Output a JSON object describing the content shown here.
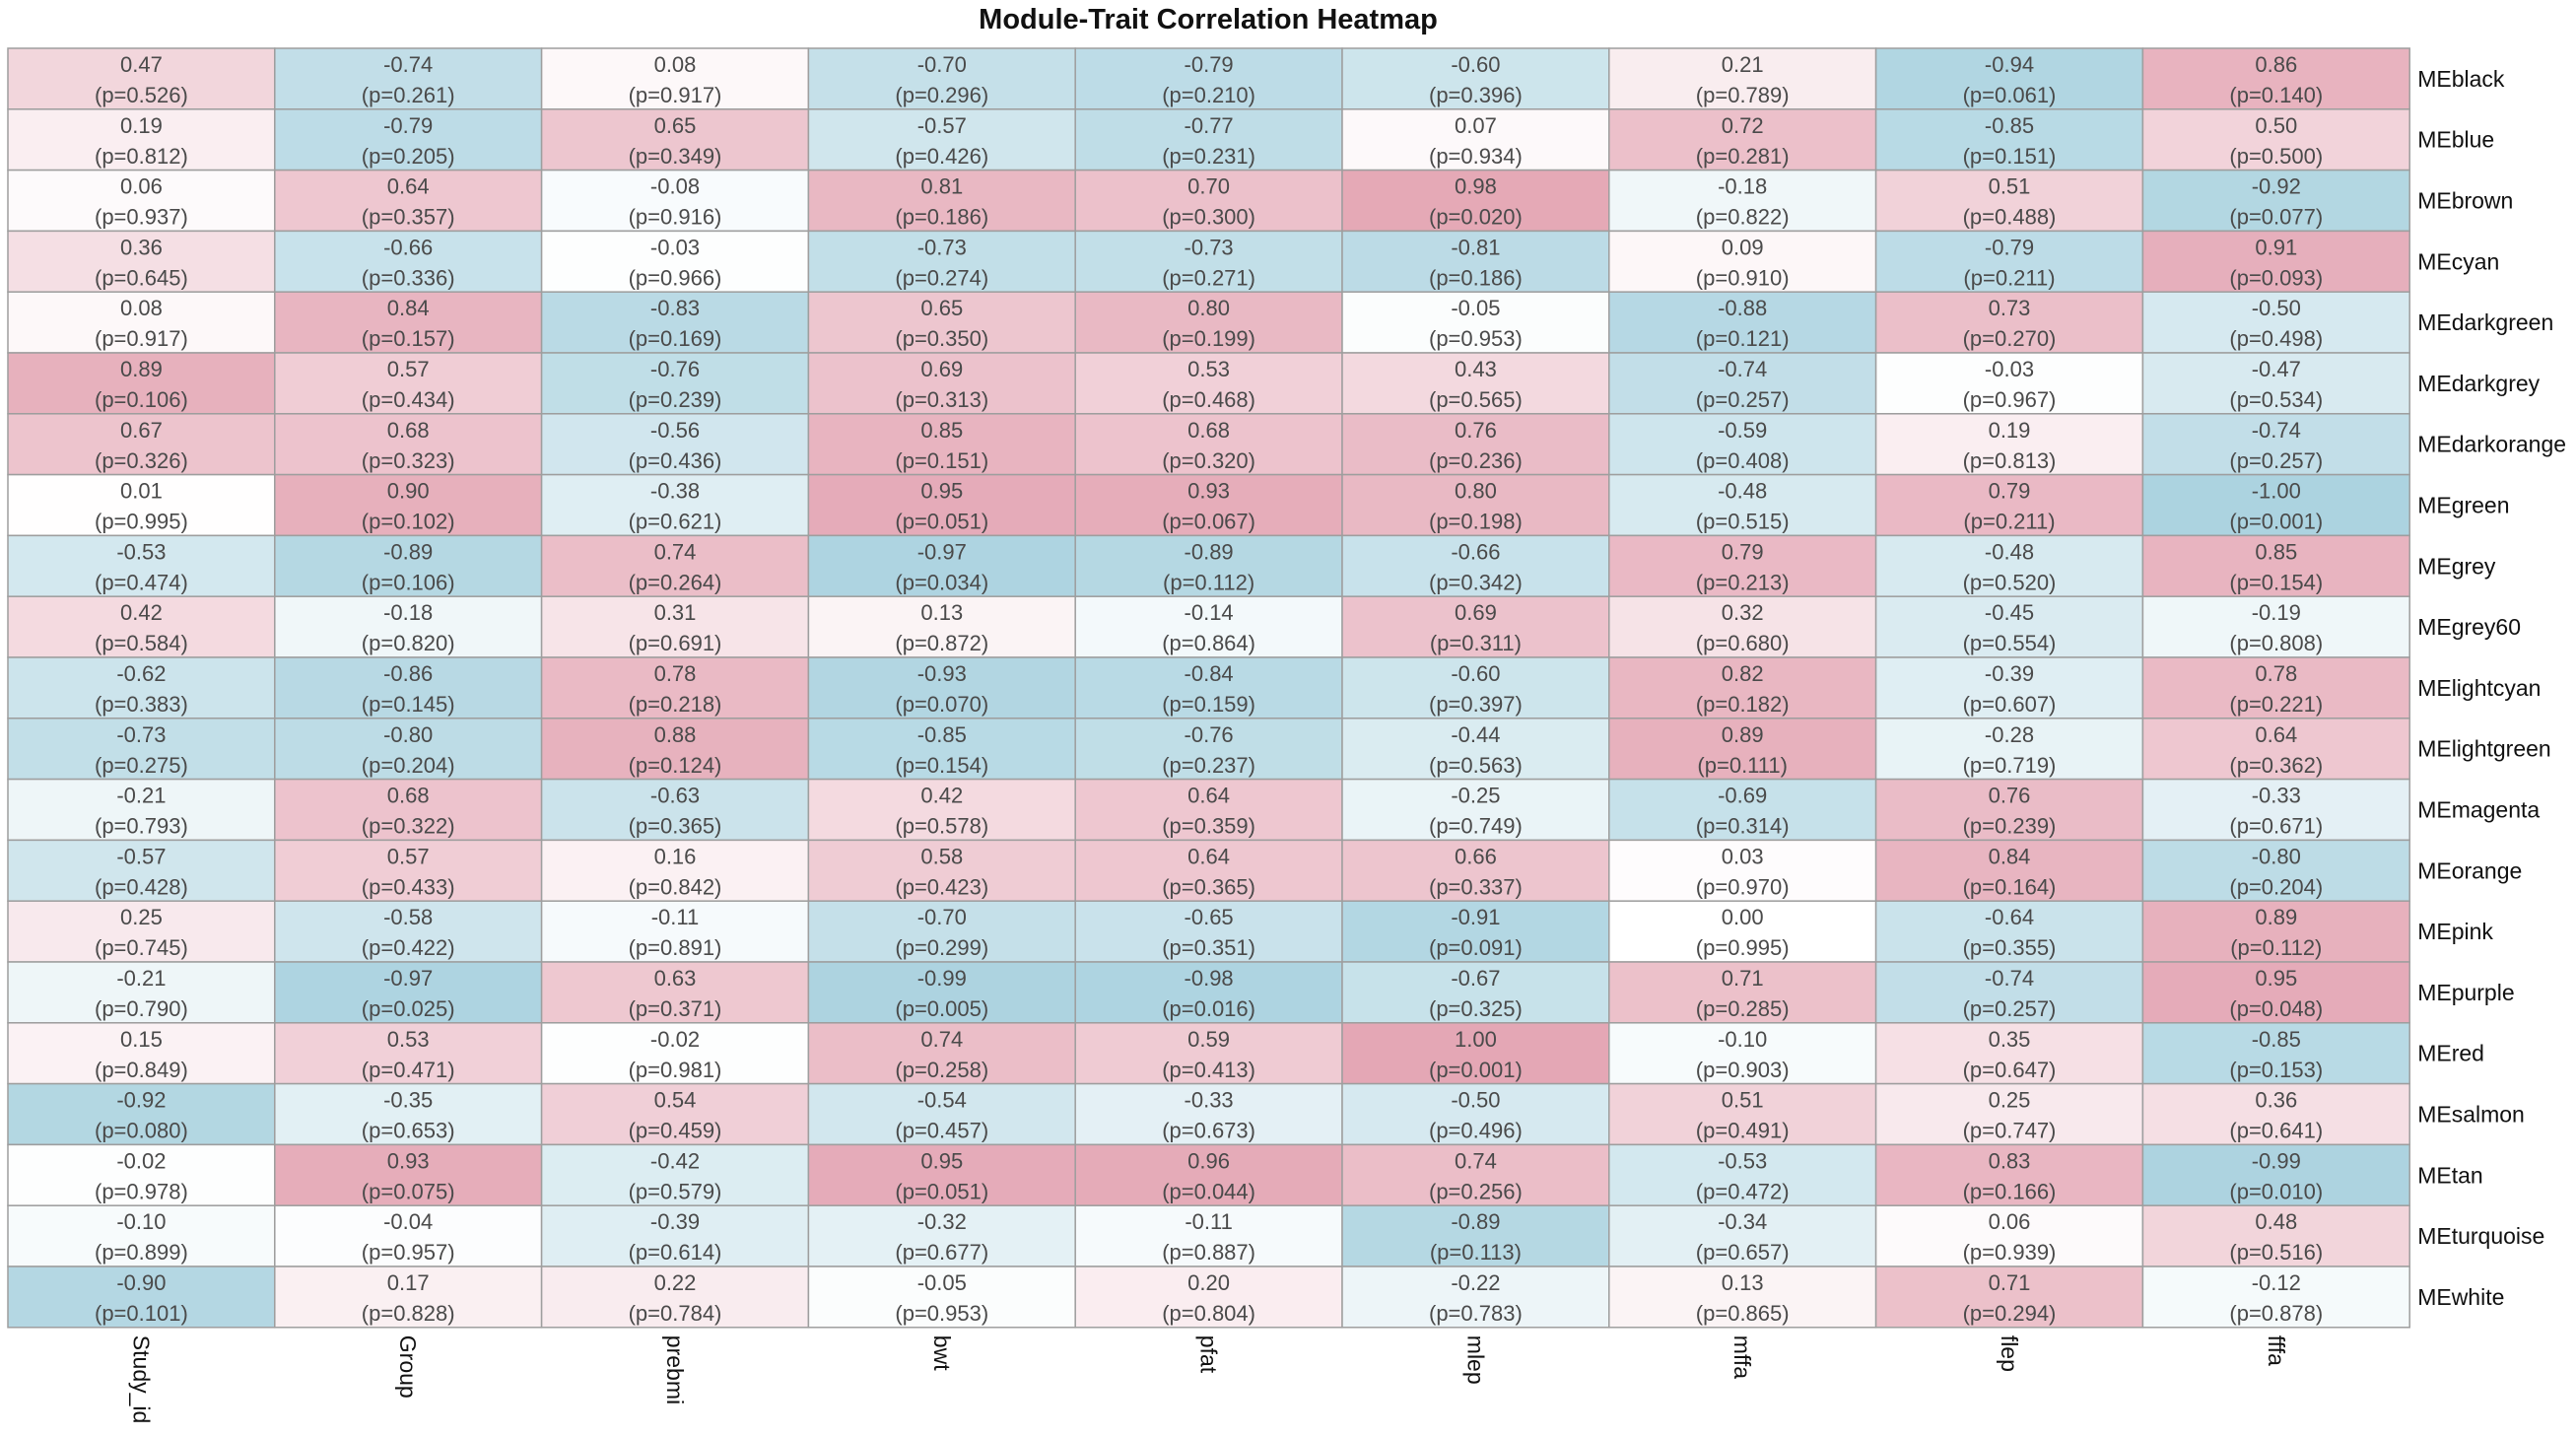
{
  "chart_data": {
    "type": "heatmap",
    "title": "Module-Trait Correlation Heatmap",
    "columns": [
      "Study_id",
      "Group",
      "prebmi",
      "bwt",
      "pfat",
      "mlep",
      "mffa",
      "flep",
      "fffa"
    ],
    "rows": [
      "MEblack",
      "MEblue",
      "MEbrown",
      "MEcyan",
      "MEdarkgreen",
      "MEdarkgrey",
      "MEdarkorange",
      "MEgreen",
      "MEgrey",
      "MEgrey60",
      "MElightcyan",
      "MElightgreen",
      "MEmagenta",
      "MEorange",
      "MEpink",
      "MEpurple",
      "MEred",
      "MEsalmon",
      "MEtan",
      "MEturquoise",
      "MEwhite"
    ],
    "correlations": [
      [
        "0.47",
        "-0.74",
        "0.08",
        "-0.70",
        "-0.79",
        "-0.60",
        "0.21",
        "-0.94",
        "0.86"
      ],
      [
        "0.19",
        "-0.79",
        "0.65",
        "-0.57",
        "-0.77",
        "0.07",
        "0.72",
        "-0.85",
        "0.50"
      ],
      [
        "0.06",
        "0.64",
        "-0.08",
        "0.81",
        "0.70",
        "0.98",
        "-0.18",
        "0.51",
        "-0.92"
      ],
      [
        "0.36",
        "-0.66",
        "-0.03",
        "-0.73",
        "-0.73",
        "-0.81",
        "0.09",
        "-0.79",
        "0.91"
      ],
      [
        "0.08",
        "0.84",
        "-0.83",
        "0.65",
        "0.80",
        "-0.05",
        "-0.88",
        "0.73",
        "-0.50"
      ],
      [
        "0.89",
        "0.57",
        "-0.76",
        "0.69",
        "0.53",
        "0.43",
        "-0.74",
        "-0.03",
        "-0.47"
      ],
      [
        "0.67",
        "0.68",
        "-0.56",
        "0.85",
        "0.68",
        "0.76",
        "-0.59",
        "0.19",
        "-0.74"
      ],
      [
        "0.01",
        "0.90",
        "-0.38",
        "0.95",
        "0.93",
        "0.80",
        "-0.48",
        "0.79",
        "-1.00"
      ],
      [
        "-0.53",
        "-0.89",
        "0.74",
        "-0.97",
        "-0.89",
        "-0.66",
        "0.79",
        "-0.48",
        "0.85"
      ],
      [
        "0.42",
        "-0.18",
        "0.31",
        "0.13",
        "-0.14",
        "0.69",
        "0.32",
        "-0.45",
        "-0.19"
      ],
      [
        "-0.62",
        "-0.86",
        "0.78",
        "-0.93",
        "-0.84",
        "-0.60",
        "0.82",
        "-0.39",
        "0.78"
      ],
      [
        "-0.73",
        "-0.80",
        "0.88",
        "-0.85",
        "-0.76",
        "-0.44",
        "0.89",
        "-0.28",
        "0.64"
      ],
      [
        "-0.21",
        "0.68",
        "-0.63",
        "0.42",
        "0.64",
        "-0.25",
        "-0.69",
        "0.76",
        "-0.33"
      ],
      [
        "-0.57",
        "0.57",
        "0.16",
        "0.58",
        "0.64",
        "0.66",
        "0.03",
        "0.84",
        "-0.80"
      ],
      [
        "0.25",
        "-0.58",
        "-0.11",
        "-0.70",
        "-0.65",
        "-0.91",
        "0.00",
        "-0.64",
        "0.89"
      ],
      [
        "-0.21",
        "-0.97",
        "0.63",
        "-0.99",
        "-0.98",
        "-0.67",
        "0.71",
        "-0.74",
        "0.95"
      ],
      [
        "0.15",
        "0.53",
        "-0.02",
        "0.74",
        "0.59",
        "1.00",
        "-0.10",
        "0.35",
        "-0.85"
      ],
      [
        "-0.92",
        "-0.35",
        "0.54",
        "-0.54",
        "-0.33",
        "-0.50",
        "0.51",
        "0.25",
        "0.36"
      ],
      [
        "-0.02",
        "0.93",
        "-0.42",
        "0.95",
        "0.96",
        "0.74",
        "-0.53",
        "0.83",
        "-0.99"
      ],
      [
        "-0.10",
        "-0.04",
        "-0.39",
        "-0.32",
        "-0.11",
        "-0.89",
        "-0.34",
        "0.06",
        "0.48"
      ],
      [
        "-0.90",
        "0.17",
        "0.22",
        "-0.05",
        "0.20",
        "-0.22",
        "0.13",
        "0.71",
        "-0.12"
      ]
    ],
    "pvalues": [
      [
        "(p=0.526)",
        "(p=0.261)",
        "(p=0.917)",
        "(p=0.296)",
        "(p=0.210)",
        "(p=0.396)",
        "(p=0.789)",
        "(p=0.061)",
        "(p=0.140)"
      ],
      [
        "(p=0.812)",
        "(p=0.205)",
        "(p=0.349)",
        "(p=0.426)",
        "(p=0.231)",
        "(p=0.934)",
        "(p=0.281)",
        "(p=0.151)",
        "(p=0.500)"
      ],
      [
        "(p=0.937)",
        "(p=0.357)",
        "(p=0.916)",
        "(p=0.186)",
        "(p=0.300)",
        "(p=0.020)",
        "(p=0.822)",
        "(p=0.488)",
        "(p=0.077)"
      ],
      [
        "(p=0.645)",
        "(p=0.336)",
        "(p=0.966)",
        "(p=0.274)",
        "(p=0.271)",
        "(p=0.186)",
        "(p=0.910)",
        "(p=0.211)",
        "(p=0.093)"
      ],
      [
        "(p=0.917)",
        "(p=0.157)",
        "(p=0.169)",
        "(p=0.350)",
        "(p=0.199)",
        "(p=0.953)",
        "(p=0.121)",
        "(p=0.270)",
        "(p=0.498)"
      ],
      [
        "(p=0.106)",
        "(p=0.434)",
        "(p=0.239)",
        "(p=0.313)",
        "(p=0.468)",
        "(p=0.565)",
        "(p=0.257)",
        "(p=0.967)",
        "(p=0.534)"
      ],
      [
        "(p=0.326)",
        "(p=0.323)",
        "(p=0.436)",
        "(p=0.151)",
        "(p=0.320)",
        "(p=0.236)",
        "(p=0.408)",
        "(p=0.813)",
        "(p=0.257)"
      ],
      [
        "(p=0.995)",
        "(p=0.102)",
        "(p=0.621)",
        "(p=0.051)",
        "(p=0.067)",
        "(p=0.198)",
        "(p=0.515)",
        "(p=0.211)",
        "(p=0.001)"
      ],
      [
        "(p=0.474)",
        "(p=0.106)",
        "(p=0.264)",
        "(p=0.034)",
        "(p=0.112)",
        "(p=0.342)",
        "(p=0.213)",
        "(p=0.520)",
        "(p=0.154)"
      ],
      [
        "(p=0.584)",
        "(p=0.820)",
        "(p=0.691)",
        "(p=0.872)",
        "(p=0.864)",
        "(p=0.311)",
        "(p=0.680)",
        "(p=0.554)",
        "(p=0.808)"
      ],
      [
        "(p=0.383)",
        "(p=0.145)",
        "(p=0.218)",
        "(p=0.070)",
        "(p=0.159)",
        "(p=0.397)",
        "(p=0.182)",
        "(p=0.607)",
        "(p=0.221)"
      ],
      [
        "(p=0.275)",
        "(p=0.204)",
        "(p=0.124)",
        "(p=0.154)",
        "(p=0.237)",
        "(p=0.563)",
        "(p=0.111)",
        "(p=0.719)",
        "(p=0.362)"
      ],
      [
        "(p=0.793)",
        "(p=0.322)",
        "(p=0.365)",
        "(p=0.578)",
        "(p=0.359)",
        "(p=0.749)",
        "(p=0.314)",
        "(p=0.239)",
        "(p=0.671)"
      ],
      [
        "(p=0.428)",
        "(p=0.433)",
        "(p=0.842)",
        "(p=0.423)",
        "(p=0.365)",
        "(p=0.337)",
        "(p=0.970)",
        "(p=0.164)",
        "(p=0.204)"
      ],
      [
        "(p=0.745)",
        "(p=0.422)",
        "(p=0.891)",
        "(p=0.299)",
        "(p=0.351)",
        "(p=0.091)",
        "(p=0.995)",
        "(p=0.355)",
        "(p=0.112)"
      ],
      [
        "(p=0.790)",
        "(p=0.025)",
        "(p=0.371)",
        "(p=0.005)",
        "(p=0.016)",
        "(p=0.325)",
        "(p=0.285)",
        "(p=0.257)",
        "(p=0.048)"
      ],
      [
        "(p=0.849)",
        "(p=0.471)",
        "(p=0.981)",
        "(p=0.258)",
        "(p=0.413)",
        "(p=0.001)",
        "(p=0.903)",
        "(p=0.647)",
        "(p=0.153)"
      ],
      [
        "(p=0.080)",
        "(p=0.653)",
        "(p=0.459)",
        "(p=0.457)",
        "(p=0.673)",
        "(p=0.496)",
        "(p=0.491)",
        "(p=0.747)",
        "(p=0.641)"
      ],
      [
        "(p=0.978)",
        "(p=0.075)",
        "(p=0.579)",
        "(p=0.051)",
        "(p=0.044)",
        "(p=0.256)",
        "(p=0.472)",
        "(p=0.166)",
        "(p=0.010)"
      ],
      [
        "(p=0.899)",
        "(p=0.957)",
        "(p=0.614)",
        "(p=0.677)",
        "(p=0.887)",
        "(p=0.113)",
        "(p=0.657)",
        "(p=0.939)",
        "(p=0.516)"
      ],
      [
        "(p=0.101)",
        "(p=0.828)",
        "(p=0.784)",
        "(p=0.953)",
        "(p=0.804)",
        "(p=0.783)",
        "(p=0.865)",
        "(p=0.294)",
        "(p=0.878)"
      ]
    ],
    "value_range": [
      -1,
      1
    ],
    "colors": {
      "negative": "#acd3e0",
      "neutral": "#ffffff",
      "positive": "#e4a7b5",
      "grid": "#9e9e9e"
    }
  }
}
